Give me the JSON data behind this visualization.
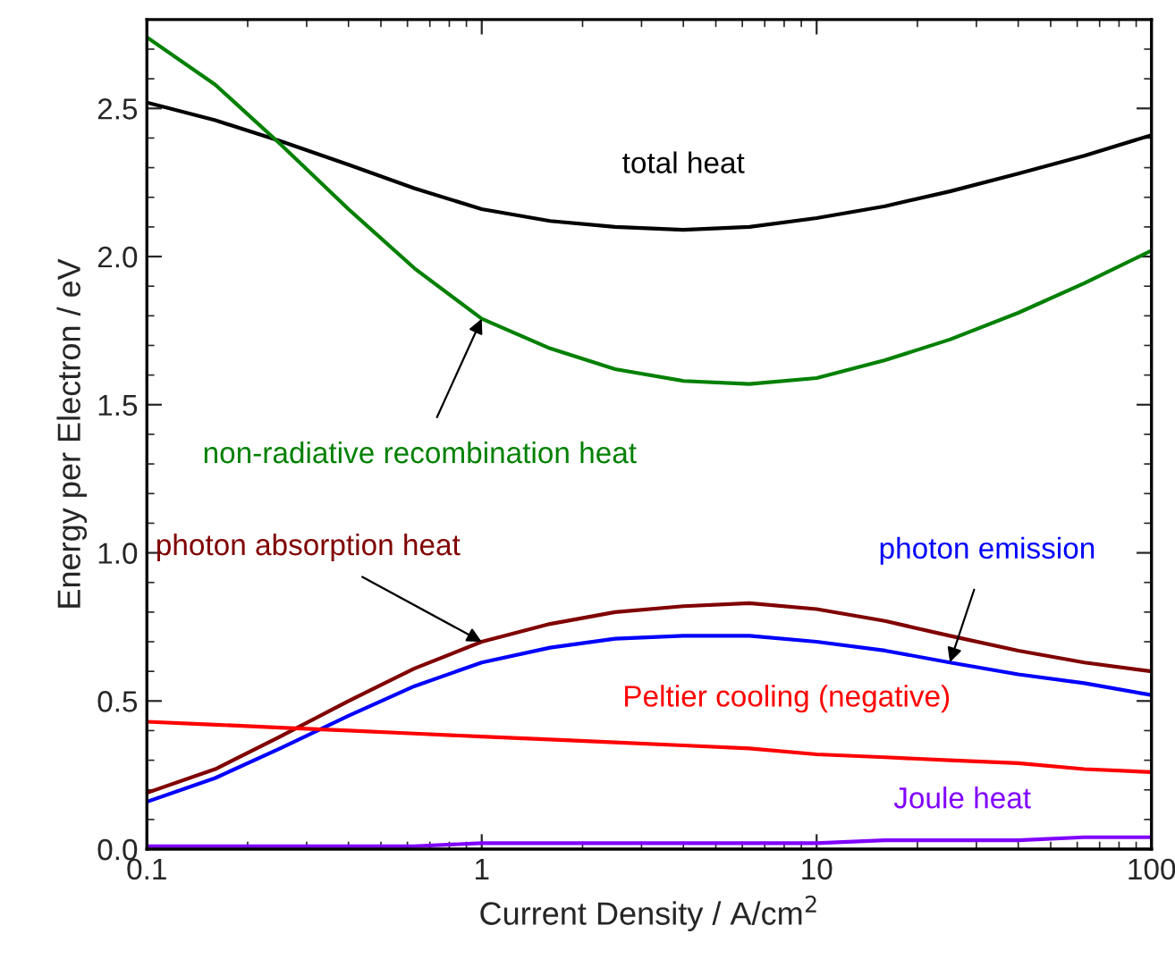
{
  "chart_data": {
    "type": "line",
    "xlabel": "Current Density / A/cm$^{2}$",
    "ylabel": "Energy per Electron / eV",
    "log": "x",
    "grid": false,
    "legend": false,
    "marker": "none",
    "line_style": "solid",
    "x": [
      0.1,
      0.16,
      0.25,
      0.4,
      0.63,
      1,
      1.6,
      2.5,
      4,
      6.3,
      10,
      16,
      25,
      40,
      63,
      100
    ],
    "xlim": [
      0.1,
      100
    ],
    "xticks": [
      0.1,
      1,
      10,
      100
    ],
    "ylim": [
      0,
      2.8
    ],
    "yticks": [
      {
        "value": 0,
        "label": "0.0"
      },
      {
        "value": 0.5,
        "label": "0.5"
      },
      {
        "value": 1,
        "label": "1.0"
      },
      {
        "value": 1.5,
        "label": "1.5"
      },
      {
        "value": 2,
        "label": "2.0"
      },
      {
        "value": 2.5,
        "label": "2.5"
      }
    ],
    "series": [
      {
        "name": "total heat",
        "color": "#000000",
        "values": [
          2.52,
          2.46,
          2.39,
          2.31,
          2.23,
          2.16,
          2.12,
          2.1,
          2.09,
          2.1,
          2.13,
          2.17,
          2.22,
          2.28,
          2.34,
          2.41
        ]
      },
      {
        "name": "non-radiative recombination heat",
        "color": "#008000",
        "values": [
          2.74,
          2.58,
          2.38,
          2.16,
          1.96,
          1.79,
          1.69,
          1.62,
          1.58,
          1.57,
          1.59,
          1.65,
          1.72,
          1.81,
          1.91,
          2.02
        ]
      },
      {
        "name": "photon absorption heat",
        "color": "#800000",
        "values": [
          0.19,
          0.27,
          0.38,
          0.5,
          0.61,
          0.7,
          0.76,
          0.8,
          0.82,
          0.83,
          0.81,
          0.77,
          0.72,
          0.67,
          0.63,
          0.6
        ]
      },
      {
        "name": "photon emission",
        "color": "#0000ff",
        "values": [
          0.16,
          0.24,
          0.34,
          0.45,
          0.55,
          0.63,
          0.68,
          0.71,
          0.72,
          0.72,
          0.7,
          0.67,
          0.63,
          0.59,
          0.56,
          0.52
        ]
      },
      {
        "name": "Peltier cooling (negative)",
        "color": "#ff0000",
        "values": [
          0.43,
          0.42,
          0.41,
          0.4,
          0.39,
          0.38,
          0.37,
          0.36,
          0.35,
          0.34,
          0.32,
          0.31,
          0.3,
          0.29,
          0.27,
          0.26
        ]
      },
      {
        "name": "Joule heat",
        "color": "#8000ff",
        "values": [
          0.01,
          0.01,
          0.01,
          0.01,
          0.01,
          0.02,
          0.02,
          0.02,
          0.02,
          0.02,
          0.02,
          0.03,
          0.03,
          0.03,
          0.04,
          0.04
        ]
      }
    ]
  }
}
